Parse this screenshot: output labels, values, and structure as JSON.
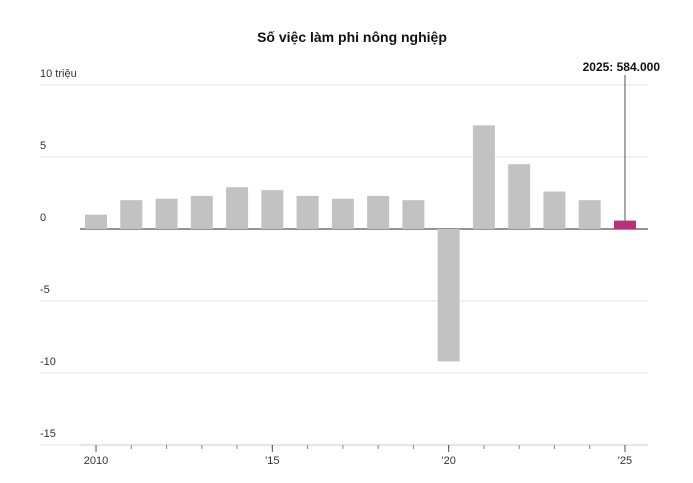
{
  "chart_data": {
    "type": "bar",
    "title": "Số việc làm phi nông nghiệp",
    "x": [
      2010,
      2011,
      2012,
      2013,
      2014,
      2015,
      2016,
      2017,
      2018,
      2019,
      2020,
      2021,
      2022,
      2023,
      2024,
      2025
    ],
    "values": [
      1.0,
      2.0,
      2.1,
      2.3,
      2.9,
      2.7,
      2.3,
      2.1,
      2.3,
      2.0,
      -9.2,
      7.2,
      4.5,
      2.6,
      2.0,
      0.584
    ],
    "value_labels": [
      null,
      null,
      null,
      null,
      null,
      null,
      null,
      null,
      null,
      null,
      null,
      null,
      null,
      null,
      null,
      "2025: 584.000"
    ],
    "colors": [
      "#c2c2c2",
      "#c2c2c2",
      "#c2c2c2",
      "#c2c2c2",
      "#c2c2c2",
      "#c2c2c2",
      "#c2c2c2",
      "#c2c2c2",
      "#c2c2c2",
      "#c2c2c2",
      "#c2c2c2",
      "#c2c2c2",
      "#c2c2c2",
      "#c2c2c2",
      "#c2c2c2",
      "#b8327a"
    ],
    "xlim": [
      2009.5,
      2025.5
    ],
    "xticks": [
      2010,
      {
        "value": 2015,
        "label": "'15"
      },
      {
        "value": 2020,
        "label": "'20"
      },
      {
        "value": 2025,
        "label": "'25"
      }
    ],
    "ylim": [
      -15,
      10
    ],
    "yticks": [
      {
        "value": 10,
        "label": "10 triệu"
      },
      5,
      0,
      -5,
      -10,
      -15
    ],
    "grid": true
  }
}
